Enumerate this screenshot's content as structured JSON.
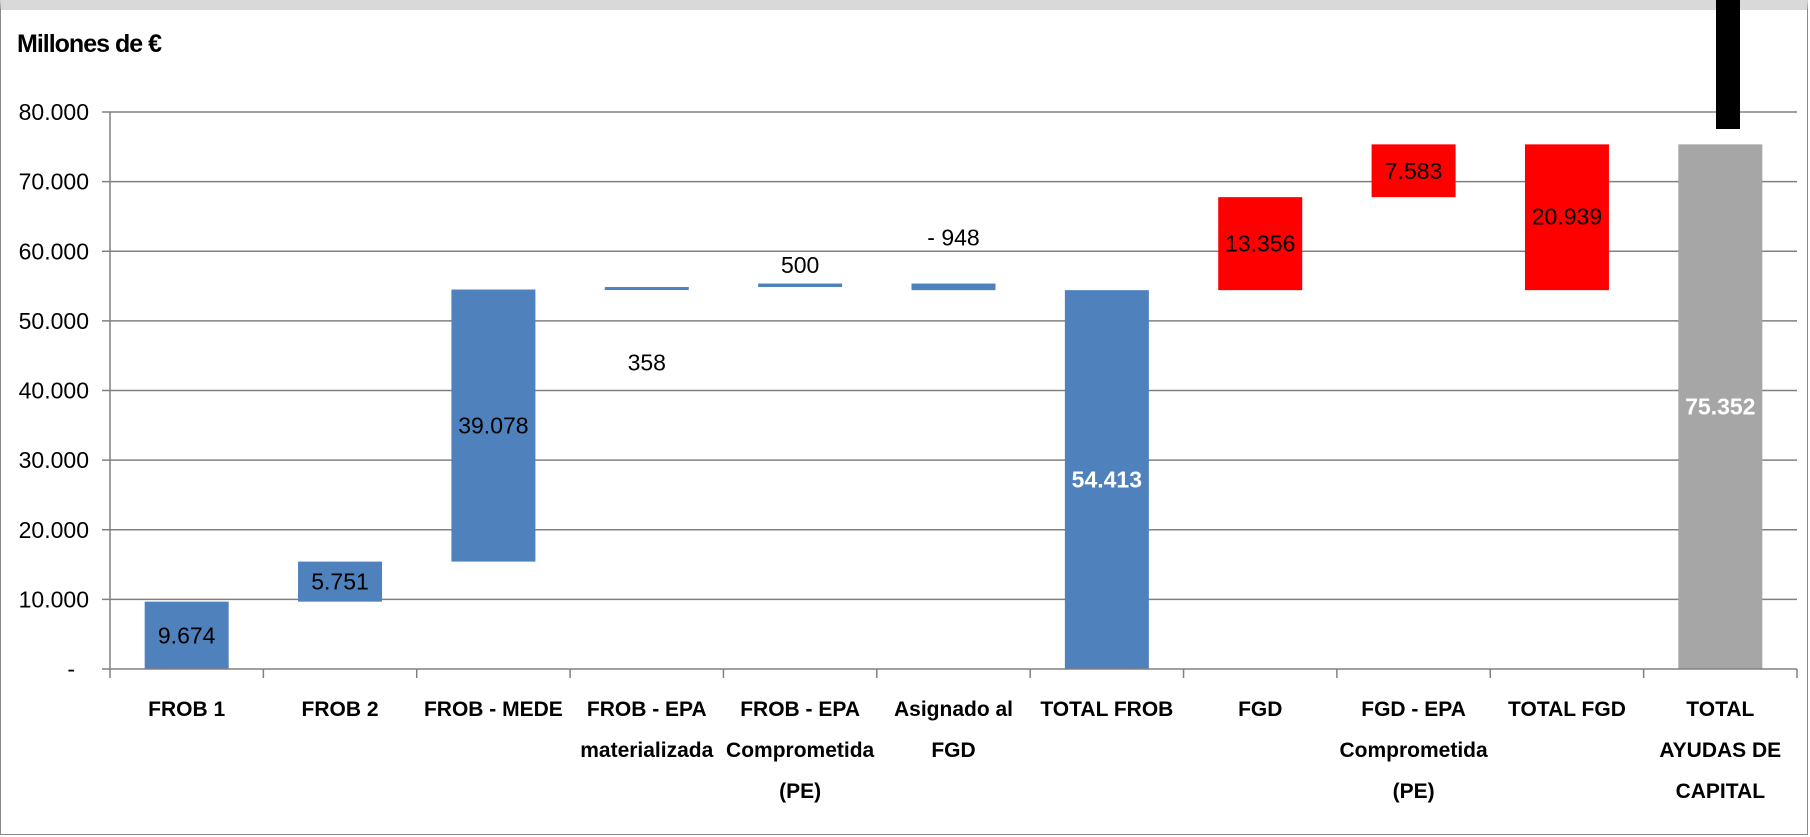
{
  "chart_data": {
    "type": "bar",
    "subtype": "waterfall",
    "unit_label": "Millones de €",
    "ylim": [
      0,
      80000
    ],
    "yticks": [
      {
        "value": 0,
        "label": "-"
      },
      {
        "value": 10000,
        "label": "10.000"
      },
      {
        "value": 20000,
        "label": "20.000"
      },
      {
        "value": 30000,
        "label": "30.000"
      },
      {
        "value": 40000,
        "label": "40.000"
      },
      {
        "value": 50000,
        "label": "50.000"
      },
      {
        "value": 60000,
        "label": "60.000"
      },
      {
        "value": 70000,
        "label": "70.000"
      },
      {
        "value": 80000,
        "label": "80.000"
      }
    ],
    "grid": true,
    "colors": {
      "frob": "#4f81bd",
      "fgd": "#ff0000",
      "total": "#a6a6a6",
      "grid": "#808080"
    },
    "bars": [
      {
        "category": [
          "FROB 1"
        ],
        "base": 0,
        "top": 9674,
        "label": "9.674",
        "color": "frob"
      },
      {
        "category": [
          "FROB 2"
        ],
        "base": 9674,
        "top": 15425,
        "label": "5.751",
        "color": "frob"
      },
      {
        "category": [
          "FROB - MEDE"
        ],
        "base": 15425,
        "top": 54503,
        "label": "39.078",
        "color": "frob"
      },
      {
        "category": [
          "FROB - EPA",
          "materializada"
        ],
        "base": 54503,
        "top": 54861,
        "label": "358",
        "color": "frob",
        "label_value": 44000
      },
      {
        "category": [
          "FROB - EPA",
          "Comprometida",
          "(PE)"
        ],
        "base": 54861,
        "top": 55361,
        "label": "500",
        "color": "frob",
        "label_value": 58000
      },
      {
        "category": [
          "Asignado al",
          "FGD"
        ],
        "base": 54413,
        "top": 55361,
        "label": "- 948",
        "color": "frob",
        "label_value": 62000
      },
      {
        "category": [
          "TOTAL FROB"
        ],
        "base": 0,
        "top": 54413,
        "label": "54.413",
        "color": "frob",
        "label_style": "white-bold"
      },
      {
        "category": [
          "FGD"
        ],
        "base": 54413,
        "top": 67769,
        "label": "13.356",
        "color": "fgd"
      },
      {
        "category": [
          "FGD  - EPA",
          "Comprometida",
          "(PE)"
        ],
        "base": 67769,
        "top": 75352,
        "label": "7.583",
        "color": "fgd"
      },
      {
        "category": [
          "TOTAL FGD"
        ],
        "base": 54413,
        "top": 75352,
        "label": "20.939",
        "color": "fgd",
        "label_value": 65000
      },
      {
        "category": [
          "TOTAL",
          "AYUDAS DE",
          "CAPITAL"
        ],
        "base": 0,
        "top": 75352,
        "label": "75.352",
        "color": "total",
        "label_style": "white-bold"
      }
    ]
  }
}
